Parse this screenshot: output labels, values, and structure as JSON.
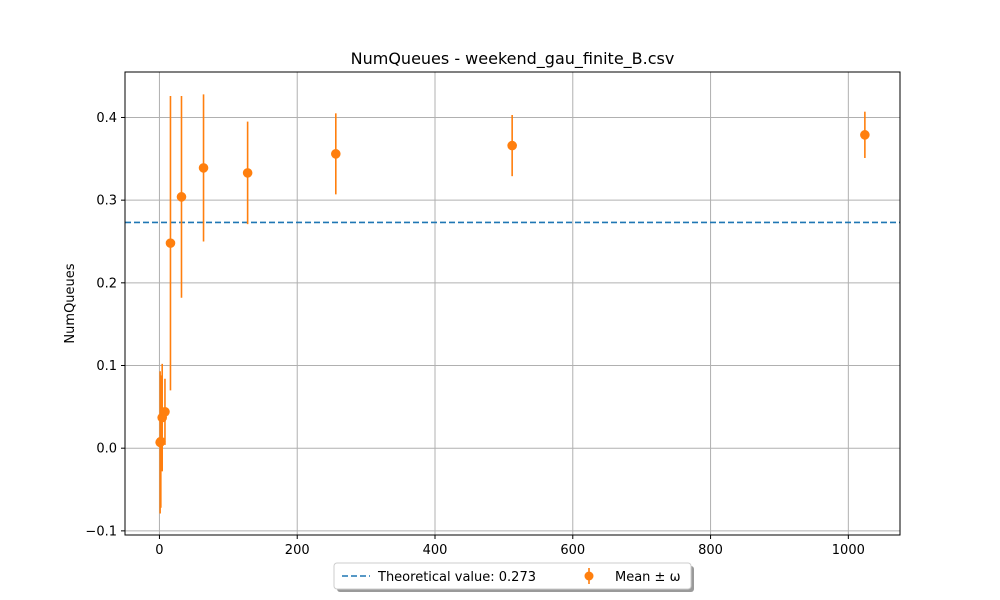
{
  "chart_data": {
    "type": "scatter",
    "title": "NumQueues - weekend_gau_finite_B.csv",
    "xlabel": "",
    "ylabel": "NumQueues",
    "xlim": [
      -50,
      1075
    ],
    "ylim": [
      -0.105,
      0.455
    ],
    "x_ticks": [
      0,
      200,
      400,
      600,
      800,
      1000
    ],
    "x_tick_labels": [
      "0",
      "200",
      "400",
      "600",
      "800",
      "1000"
    ],
    "y_ticks": [
      -0.1,
      0.0,
      0.1,
      0.2,
      0.3,
      0.4
    ],
    "y_tick_labels": [
      "−0.1",
      "0.0",
      "0.1",
      "0.2",
      "0.3",
      "0.4"
    ],
    "grid": true,
    "theoretical_value": 0.273,
    "series": [
      {
        "name": "Mean ± ω",
        "color": "#ff7f0e",
        "points": [
          {
            "x": 1,
            "mean": 0.007,
            "err": 0.086
          },
          {
            "x": 2,
            "mean": 0.008,
            "err": 0.08
          },
          {
            "x": 4,
            "mean": 0.037,
            "err": 0.065
          },
          {
            "x": 8,
            "mean": 0.044,
            "err": 0.04
          },
          {
            "x": 16,
            "mean": 0.248,
            "err": 0.178
          },
          {
            "x": 32,
            "mean": 0.304,
            "err": 0.122
          },
          {
            "x": 64,
            "mean": 0.339,
            "err": 0.089
          },
          {
            "x": 128,
            "mean": 0.333,
            "err": 0.062
          },
          {
            "x": 256,
            "mean": 0.356,
            "err": 0.049
          },
          {
            "x": 512,
            "mean": 0.366,
            "err": 0.037
          },
          {
            "x": 1024,
            "mean": 0.379,
            "err": 0.028
          }
        ]
      }
    ],
    "legend": {
      "position": "bottom-center",
      "entries": [
        {
          "label": "Theoretical value: 0.273",
          "style": "dashed-line",
          "color": "#1f77b4"
        },
        {
          "label": "Mean ± ω",
          "style": "errorbar-marker",
          "color": "#ff7f0e"
        }
      ]
    }
  }
}
